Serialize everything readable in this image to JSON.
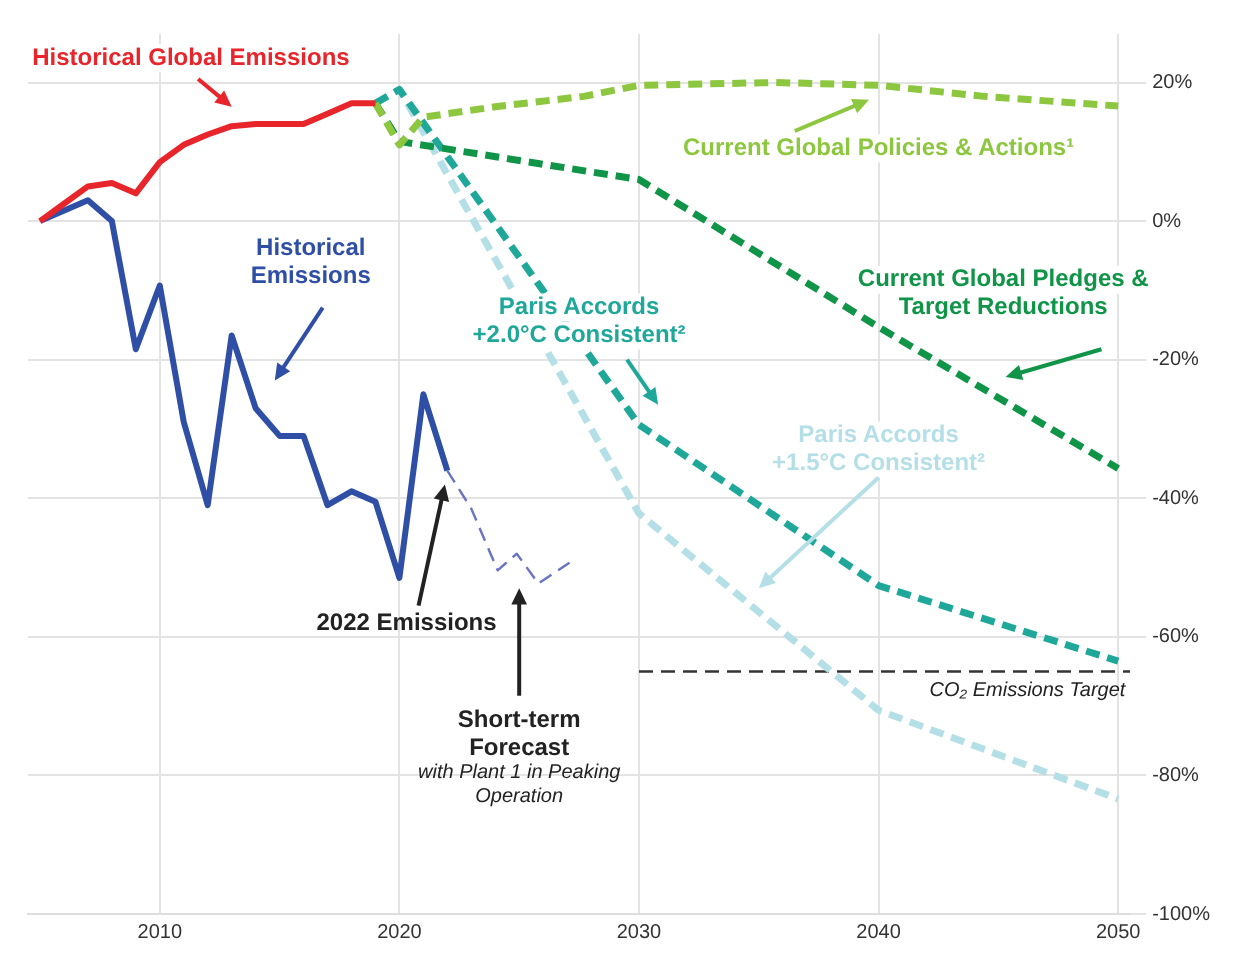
{
  "chart_data": {
    "type": "line",
    "xlim": [
      2004.5,
      2050.5
    ],
    "ylim": [
      -100,
      27
    ],
    "xticks": [
      2010,
      2020,
      2030,
      2040,
      2050
    ],
    "yticks": [
      {
        "value": 20,
        "label": "20%"
      },
      {
        "value": 0,
        "label": "0%"
      },
      {
        "value": -20,
        "label": "-20%"
      },
      {
        "value": -40,
        "label": "-40%"
      },
      {
        "value": -60,
        "label": "-60%"
      },
      {
        "value": -80,
        "label": "-80%"
      },
      {
        "value": -100,
        "label": "-100%"
      }
    ],
    "grid": true,
    "marker": "none",
    "series": [
      {
        "name": "Historical Global Emissions",
        "color": "#e8252a",
        "line_style": "solid",
        "x": [
          2005,
          2006,
          2007,
          2008,
          2009,
          2010,
          2011,
          2012,
          2013,
          2014,
          2015,
          2016,
          2017,
          2018,
          2019
        ],
        "values": [
          0,
          2.5,
          5,
          5.5,
          4,
          8.5,
          11,
          12.5,
          13.7,
          14,
          14,
          14,
          15.5,
          17,
          17
        ]
      },
      {
        "name": "Historical Emissions",
        "color": "#2e4fa5",
        "line_style": "solid",
        "x": [
          2005,
          2007,
          2008,
          2009,
          2010,
          2011,
          2012,
          2013,
          2014,
          2015,
          2016,
          2017,
          2018,
          2019,
          2020,
          2021,
          2022
        ],
        "values": [
          0,
          3,
          0,
          -18.5,
          -9.3,
          -29,
          -41,
          -16.5,
          -27,
          -31,
          -31,
          -41,
          -39,
          -40.5,
          -51.5,
          -25,
          -36
        ]
      },
      {
        "color": "#6874c0",
        "line_style": "dashed",
        "x": [
          2022,
          2023,
          2024.1,
          2024.9,
          2025.8,
          2027.1
        ],
        "values": [
          -36,
          -41.5,
          -50.4,
          -48,
          -52.3,
          -49.3
        ]
      },
      {
        "name": "Current Global Policies & Actions¹",
        "color": "#8dc63f",
        "line_style": "dashed",
        "x": [
          2019,
          2020,
          2021,
          2024,
          2027.7,
          2030,
          2035.7,
          2040,
          2044.4,
          2050
        ],
        "values": [
          17,
          11,
          15,
          16.5,
          18,
          19.6,
          20,
          19.6,
          18,
          16.6
        ]
      },
      {
        "name": "Current Global Pledges & Target Reductions",
        "color": "#109447",
        "line_style": "dashed",
        "x": [
          2019,
          2020,
          2030,
          2040,
          2050
        ],
        "values": [
          17,
          11.5,
          6,
          -15.3,
          -35.7
        ]
      },
      {
        "name": "Paris Accords +2.0°C Consistent²",
        "color": "#1fa89a",
        "line_style": "dashed",
        "x": [
          2019,
          2020,
          2030,
          2040,
          2050
        ],
        "values": [
          17,
          19,
          -29.4,
          -52.6,
          -63.5
        ]
      },
      {
        "name": "Paris Accords +1.5°C Consistent²",
        "color": "#b5dfe6",
        "line_style": "dashed",
        "x": [
          2019,
          2020,
          2030,
          2040,
          2050
        ],
        "values": [
          17,
          19,
          -42.2,
          -70.6,
          -83.4
        ]
      },
      {
        "color": "#333333",
        "line_style": "dashed",
        "x": [
          2030,
          2050.5
        ],
        "values": [
          -65,
          -65
        ]
      }
    ],
    "annotations": [
      "2022 Emissions",
      "Short-term Forecast",
      "with Plant 1 in Peaking Operation",
      "CO₂ Emissions Target"
    ]
  }
}
